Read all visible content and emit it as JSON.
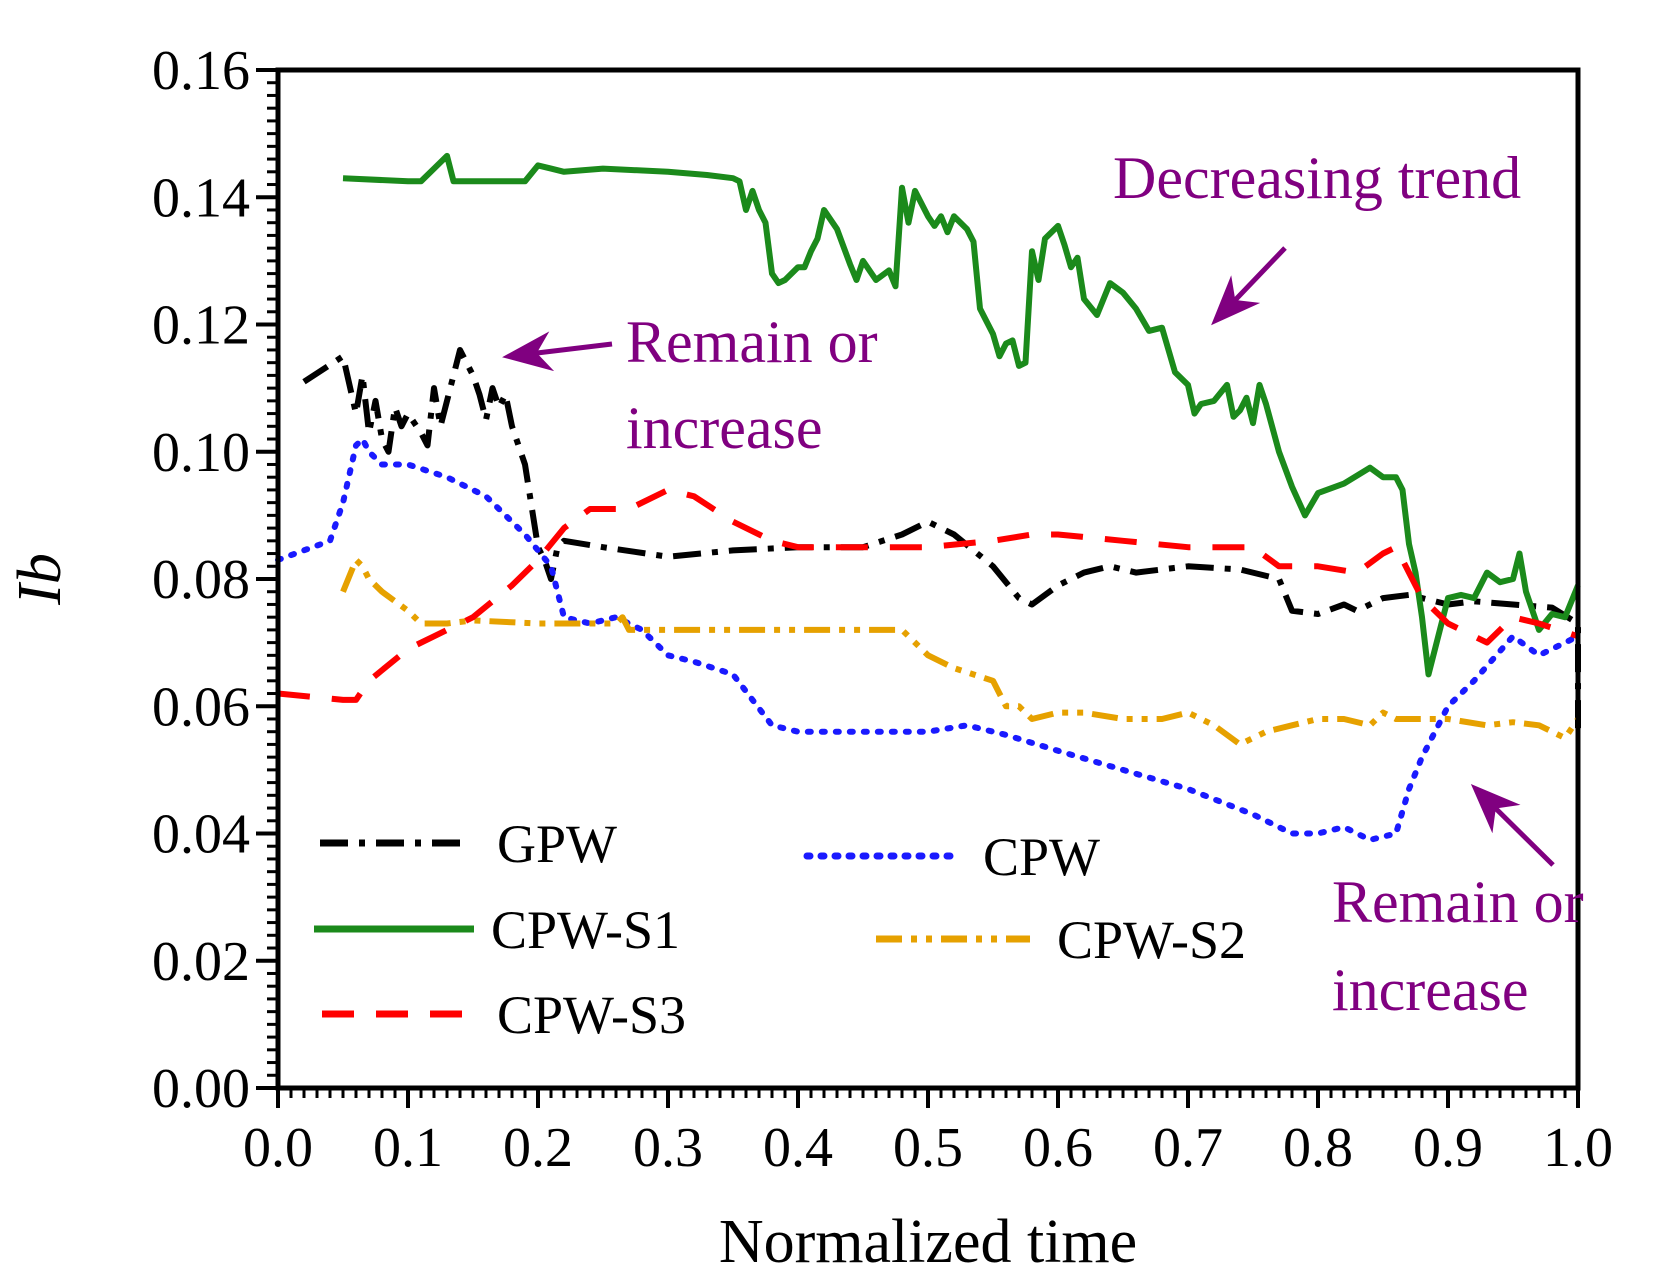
{
  "chart_data": {
    "type": "line",
    "title": "",
    "xlabel": "Normalized time",
    "ylabel": "Ib",
    "xlim": [
      0.0,
      1.0
    ],
    "ylim": [
      0.0,
      0.16
    ],
    "xticks": [
      "0.0",
      "0.1",
      "0.2",
      "0.3",
      "0.4",
      "0.5",
      "0.6",
      "0.7",
      "0.8",
      "0.9",
      "1.0"
    ],
    "yticks": [
      "0.00",
      "0.02",
      "0.04",
      "0.06",
      "0.08",
      "0.10",
      "0.12",
      "0.14",
      "0.16"
    ],
    "grid": false,
    "legend_position": "bottom-left",
    "series": [
      {
        "name": "GPW",
        "color": "#000000",
        "style": "dash-dot",
        "x": [
          0.02,
          0.05,
          0.06,
          0.065,
          0.07,
          0.075,
          0.08,
          0.085,
          0.09,
          0.095,
          0.1,
          0.11,
          0.115,
          0.12,
          0.125,
          0.13,
          0.14,
          0.145,
          0.15,
          0.155,
          0.16,
          0.165,
          0.17,
          0.175,
          0.18,
          0.19,
          0.2,
          0.205,
          0.21,
          0.215,
          0.22,
          0.25,
          0.3,
          0.35,
          0.4,
          0.45,
          0.48,
          0.5,
          0.52,
          0.55,
          0.57,
          0.58,
          0.6,
          0.62,
          0.64,
          0.66,
          0.7,
          0.74,
          0.77,
          0.78,
          0.8,
          0.82,
          0.83,
          0.85,
          0.87,
          0.9,
          0.92,
          0.95,
          0.98,
          1.0,
          1.0
        ],
        "values": [
          0.111,
          0.115,
          0.106,
          0.112,
          0.103,
          0.108,
          0.102,
          0.1,
          0.107,
          0.104,
          0.106,
          0.103,
          0.101,
          0.11,
          0.104,
          0.108,
          0.116,
          0.114,
          0.112,
          0.109,
          0.105,
          0.11,
          0.107,
          0.109,
          0.104,
          0.098,
          0.085,
          0.083,
          0.08,
          0.085,
          0.086,
          0.085,
          0.0835,
          0.0845,
          0.085,
          0.085,
          0.087,
          0.089,
          0.087,
          0.082,
          0.077,
          0.076,
          0.079,
          0.081,
          0.082,
          0.081,
          0.082,
          0.0815,
          0.08,
          0.075,
          0.0745,
          0.076,
          0.075,
          0.077,
          0.0775,
          0.076,
          0.0765,
          0.076,
          0.0755,
          0.073,
          0.056
        ]
      },
      {
        "name": "CPW",
        "color": "#1a1aff",
        "style": "dotted",
        "x": [
          0.0,
          0.04,
          0.05,
          0.06,
          0.065,
          0.07,
          0.08,
          0.1,
          0.13,
          0.16,
          0.19,
          0.21,
          0.22,
          0.24,
          0.26,
          0.28,
          0.3,
          0.32,
          0.35,
          0.38,
          0.4,
          0.43,
          0.46,
          0.5,
          0.53,
          0.56,
          0.6,
          0.65,
          0.7,
          0.75,
          0.78,
          0.8,
          0.82,
          0.84,
          0.86,
          0.87,
          0.88,
          0.9,
          0.92,
          0.95,
          0.97,
          1.0
        ],
        "values": [
          0.083,
          0.086,
          0.092,
          0.101,
          0.102,
          0.1,
          0.098,
          0.098,
          0.096,
          0.093,
          0.087,
          0.082,
          0.074,
          0.073,
          0.074,
          0.072,
          0.068,
          0.067,
          0.065,
          0.057,
          0.056,
          0.056,
          0.056,
          0.056,
          0.057,
          0.0555,
          0.053,
          0.05,
          0.047,
          0.043,
          0.04,
          0.04,
          0.041,
          0.039,
          0.04,
          0.047,
          0.052,
          0.06,
          0.064,
          0.071,
          0.068,
          0.071
        ]
      },
      {
        "name": "CPW-S1",
        "color": "#1b8a1b",
        "style": "solid",
        "x": [
          0.05,
          0.1,
          0.11,
          0.12,
          0.13,
          0.135,
          0.14,
          0.15,
          0.17,
          0.19,
          0.2,
          0.21,
          0.22,
          0.25,
          0.3,
          0.33,
          0.35,
          0.355,
          0.36,
          0.365,
          0.37,
          0.375,
          0.38,
          0.385,
          0.39,
          0.4,
          0.405,
          0.41,
          0.415,
          0.42,
          0.43,
          0.44,
          0.445,
          0.45,
          0.455,
          0.46,
          0.47,
          0.475,
          0.48,
          0.485,
          0.49,
          0.5,
          0.505,
          0.51,
          0.515,
          0.52,
          0.53,
          0.535,
          0.54,
          0.55,
          0.555,
          0.56,
          0.565,
          0.57,
          0.575,
          0.58,
          0.585,
          0.59,
          0.6,
          0.605,
          0.61,
          0.615,
          0.62,
          0.63,
          0.64,
          0.65,
          0.66,
          0.67,
          0.68,
          0.69,
          0.7,
          0.705,
          0.71,
          0.72,
          0.73,
          0.735,
          0.74,
          0.745,
          0.75,
          0.755,
          0.76,
          0.77,
          0.78,
          0.79,
          0.8,
          0.82,
          0.84,
          0.85,
          0.86,
          0.865,
          0.87,
          0.875,
          0.88,
          0.885,
          0.89,
          0.9,
          0.91,
          0.92,
          0.93,
          0.94,
          0.95,
          0.955,
          0.96,
          0.97,
          0.98,
          0.99,
          1.0
        ],
        "values": [
          0.143,
          0.1425,
          0.1425,
          0.1445,
          0.1465,
          0.1425,
          0.1425,
          0.1425,
          0.1425,
          0.1425,
          0.145,
          0.1445,
          0.144,
          0.1445,
          0.144,
          0.1435,
          0.143,
          0.1425,
          0.138,
          0.141,
          0.138,
          0.136,
          0.128,
          0.1265,
          0.127,
          0.129,
          0.129,
          0.1315,
          0.1335,
          0.138,
          0.135,
          0.1295,
          0.127,
          0.13,
          0.1285,
          0.127,
          0.1285,
          0.126,
          0.1415,
          0.136,
          0.141,
          0.137,
          0.1355,
          0.137,
          0.1345,
          0.137,
          0.135,
          0.133,
          0.1225,
          0.1185,
          0.115,
          0.117,
          0.1175,
          0.1135,
          0.114,
          0.1315,
          0.127,
          0.1335,
          0.1355,
          0.1325,
          0.129,
          0.1305,
          0.124,
          0.1215,
          0.1265,
          0.125,
          0.1225,
          0.119,
          0.1195,
          0.1125,
          0.1105,
          0.106,
          0.1075,
          0.108,
          0.1105,
          0.1055,
          0.1065,
          0.1085,
          0.1045,
          0.1105,
          0.1075,
          0.1,
          0.0945,
          0.09,
          0.0935,
          0.095,
          0.0975,
          0.096,
          0.096,
          0.094,
          0.0855,
          0.081,
          0.074,
          0.065,
          0.069,
          0.077,
          0.0775,
          0.077,
          0.081,
          0.0795,
          0.08,
          0.084,
          0.078,
          0.072,
          0.0745,
          0.074,
          0.079
        ]
      },
      {
        "name": "CPW-S2",
        "color": "#e6a100",
        "style": "dash-dot-dot",
        "x": [
          0.05,
          0.06,
          0.065,
          0.07,
          0.08,
          0.1,
          0.11,
          0.13,
          0.15,
          0.2,
          0.24,
          0.26,
          0.265,
          0.27,
          0.3,
          0.35,
          0.4,
          0.45,
          0.48,
          0.5,
          0.52,
          0.55,
          0.56,
          0.57,
          0.58,
          0.6,
          0.62,
          0.65,
          0.68,
          0.7,
          0.72,
          0.74,
          0.76,
          0.78,
          0.8,
          0.82,
          0.84,
          0.85,
          0.86,
          0.88,
          0.9,
          0.93,
          0.95,
          0.97,
          0.99,
          1.0
        ],
        "values": [
          0.078,
          0.083,
          0.082,
          0.08,
          0.078,
          0.075,
          0.073,
          0.073,
          0.0735,
          0.073,
          0.073,
          0.073,
          0.074,
          0.072,
          0.072,
          0.072,
          0.072,
          0.072,
          0.072,
          0.068,
          0.066,
          0.064,
          0.06,
          0.06,
          0.058,
          0.059,
          0.059,
          0.058,
          0.058,
          0.059,
          0.057,
          0.054,
          0.056,
          0.057,
          0.058,
          0.058,
          0.057,
          0.059,
          0.058,
          0.058,
          0.058,
          0.057,
          0.0575,
          0.057,
          0.055,
          0.058
        ]
      },
      {
        "name": "CPW-S3",
        "color": "#ff0000",
        "style": "dashed",
        "x": [
          0.0,
          0.05,
          0.06,
          0.07,
          0.1,
          0.12,
          0.15,
          0.18,
          0.2,
          0.22,
          0.24,
          0.27,
          0.3,
          0.32,
          0.35,
          0.38,
          0.4,
          0.45,
          0.5,
          0.55,
          0.58,
          0.6,
          0.65,
          0.7,
          0.75,
          0.77,
          0.8,
          0.83,
          0.85,
          0.86,
          0.87,
          0.88,
          0.9,
          0.93,
          0.95,
          0.97,
          1.0
        ],
        "values": [
          0.062,
          0.061,
          0.061,
          0.064,
          0.069,
          0.071,
          0.074,
          0.079,
          0.083,
          0.088,
          0.091,
          0.091,
          0.094,
          0.093,
          0.089,
          0.086,
          0.085,
          0.085,
          0.085,
          0.086,
          0.087,
          0.087,
          0.086,
          0.085,
          0.085,
          0.082,
          0.082,
          0.081,
          0.084,
          0.085,
          0.081,
          0.077,
          0.073,
          0.07,
          0.074,
          0.073,
          0.071
        ]
      }
    ],
    "annotations": [
      {
        "lines": [
          "Decreasing trend"
        ],
        "color": "#800080"
      },
      {
        "lines": [
          "Remain or",
          "increase"
        ],
        "color": "#800080"
      },
      {
        "lines": [
          "Remain or",
          "increase"
        ],
        "color": "#800080"
      }
    ]
  }
}
